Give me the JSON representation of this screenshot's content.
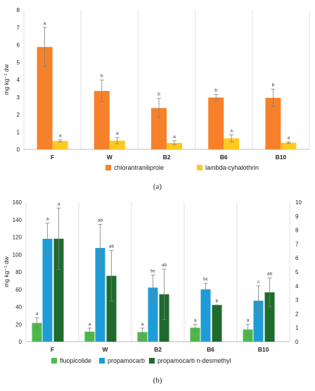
{
  "chart_data": [
    {
      "type": "bar",
      "panel_label": "(a)",
      "categories": [
        "F",
        "W",
        "B2",
        "B6",
        "B10"
      ],
      "ylabel": "mg kg⁻¹ dw",
      "ylim": [
        0,
        8
      ],
      "yticks": [
        0,
        1,
        2,
        3,
        4,
        5,
        6,
        7,
        8
      ],
      "grid": "vertical separators between categories",
      "legend_position": "bottom",
      "series": [
        {
          "name": "chlorantraniliprole",
          "color": "#F7812A",
          "values": [
            5.87,
            3.35,
            2.37,
            2.97,
            2.95
          ],
          "errors": [
            1.12,
            0.62,
            0.55,
            0.18,
            0.5
          ],
          "letters": [
            "a",
            "b",
            "b",
            "b",
            "b"
          ]
        },
        {
          "name": "lambda-cyhalothrin",
          "color": "#FFC91F",
          "values": [
            0.48,
            0.5,
            0.37,
            0.63,
            0.38
          ],
          "errors": [
            0.06,
            0.18,
            0.12,
            0.2,
            0.05
          ],
          "letters": [
            "a",
            "a",
            "a",
            "a",
            "a"
          ]
        }
      ]
    },
    {
      "type": "bar",
      "panel_label": "(b)",
      "categories": [
        "F",
        "W",
        "B2",
        "B6",
        "B10"
      ],
      "ylabel": "mg kg⁻¹ dw",
      "ylim": [
        0,
        160
      ],
      "yticks": [
        0,
        20,
        40,
        60,
        80,
        100,
        120,
        140,
        160
      ],
      "y2lim": [
        0,
        10
      ],
      "y2ticks": [
        0,
        1,
        2,
        3,
        4,
        5,
        6,
        7,
        8,
        9,
        10
      ],
      "grid": "vertical separators between categories",
      "legend_position": "bottom",
      "series": [
        {
          "name": "fluopicolide",
          "color": "#4DB848",
          "axis": "left",
          "values": [
            21.5,
            11.5,
            11,
            16,
            14
          ],
          "errors": [
            6,
            4,
            4.5,
            4,
            6
          ],
          "letters": [
            "a",
            "a",
            "a",
            "a",
            "a"
          ]
        },
        {
          "name": "propamocarb",
          "color": "#1E9CD7",
          "axis": "left",
          "values": [
            118,
            107.5,
            62,
            60,
            47
          ],
          "errors": [
            18,
            27,
            14.5,
            7,
            17
          ],
          "letters": [
            "a",
            "ab",
            "bc",
            "bc",
            "c"
          ]
        },
        {
          "name": "propamocarb n-desmethyl",
          "color": "#1F6B2E",
          "axis": "right",
          "values": [
            7.38,
            4.72,
            3.4,
            2.63,
            3.54
          ],
          "errors": [
            2.2,
            1.82,
            1.8,
            0.0,
            1.03
          ],
          "letters": [
            "a",
            "ab",
            "ab",
            "b",
            "ab"
          ]
        }
      ]
    }
  ]
}
